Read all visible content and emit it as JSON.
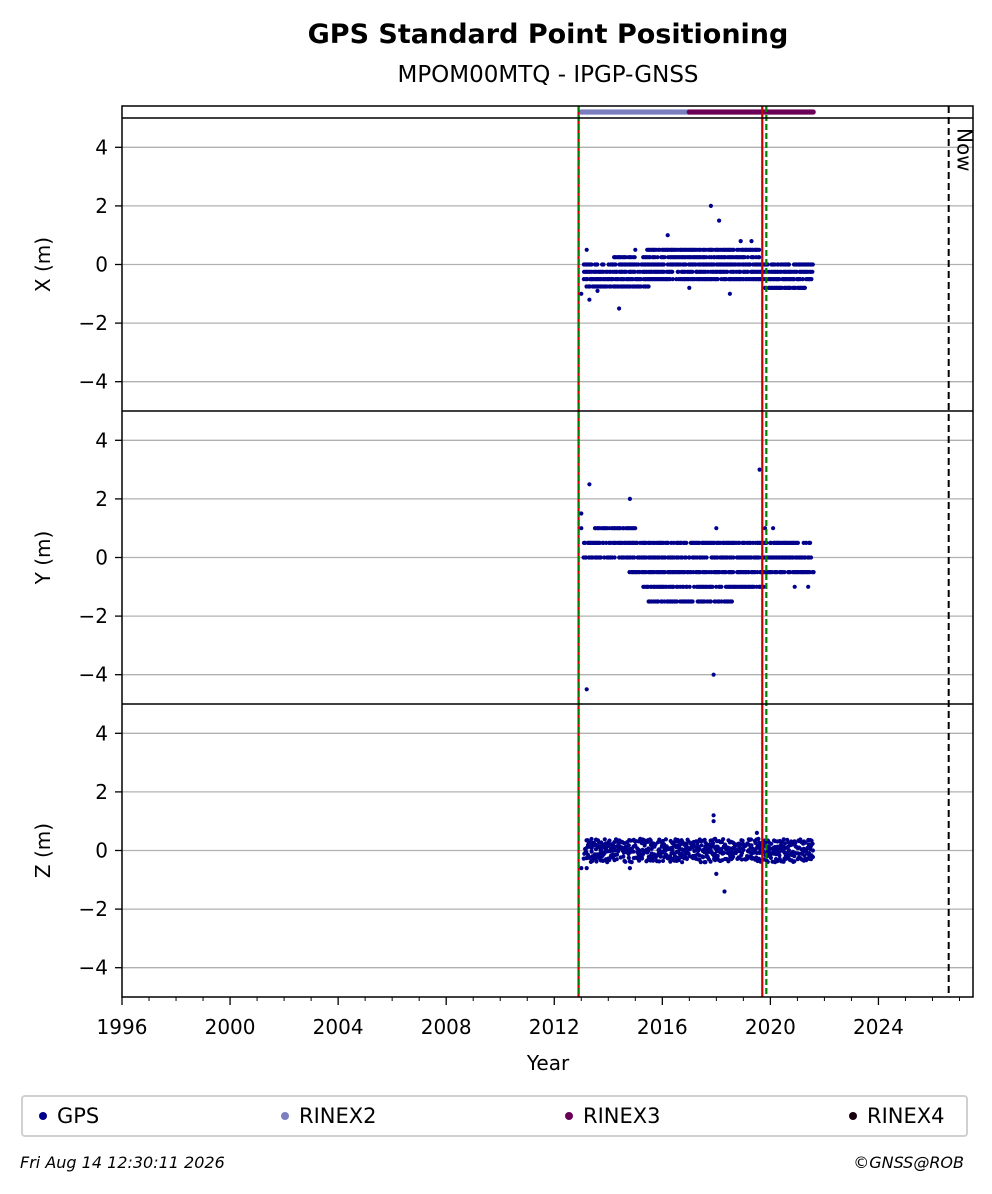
{
  "chart_data": {
    "type": "scatter",
    "title": "GPS Standard Point Positioning",
    "subtitle": "MPOM00MTQ - IPGP-GNSS",
    "xlabel": "Year",
    "xlim": [
      1996,
      2027.5
    ],
    "xticks": [
      "1996",
      "2000",
      "2004",
      "2008",
      "2012",
      "2016",
      "2020",
      "2024"
    ],
    "ylim": [
      -5,
      5
    ],
    "yticks": [
      "4",
      "2",
      "0",
      "−2",
      "−4"
    ],
    "grid": true,
    "now_label": "Now",
    "now_year": 2026.6,
    "vertical_markers": [
      {
        "kind": "equipment",
        "color": "#cc0000",
        "year": 2012.9
      },
      {
        "kind": "dashed-green",
        "color": "#007f00",
        "year": 2012.9
      },
      {
        "kind": "equipment",
        "color": "#cc0000",
        "year": 2019.7
      },
      {
        "kind": "dashed-green",
        "color": "#007f00",
        "year": 2019.85
      }
    ],
    "data_bars": [
      {
        "name": "RINEX2",
        "color": "#7b7fbf",
        "start": 2013.0,
        "end": 2017.0
      },
      {
        "name": "RINEX3",
        "color": "#6b0058",
        "start": 2017.0,
        "end": 2021.6
      }
    ],
    "panels": [
      {
        "ylabel": "X (m)",
        "range": [
          2013.1,
          2021.6
        ],
        "levels": [
          {
            "y": 0.5,
            "from": 2015.4,
            "to": 2019.6
          },
          {
            "y": 0.25,
            "from": 2014.2,
            "to": 2019.7
          },
          {
            "y": 0,
            "from": 2013.1,
            "to": 2021.6
          },
          {
            "y": -0.25,
            "from": 2013.1,
            "to": 2021.6
          },
          {
            "y": -0.5,
            "from": 2013.1,
            "to": 2021.6
          },
          {
            "y": -0.75,
            "from": 2013.1,
            "to": 2015.5
          },
          {
            "y": -0.8,
            "from": 2019.8,
            "to": 2021.3
          }
        ],
        "points": [
          [
            2013.2,
            0.5
          ],
          [
            2013.3,
            -1.2
          ],
          [
            2013.0,
            -1.0
          ],
          [
            2014.4,
            -1.5
          ],
          [
            2017.8,
            2.0
          ],
          [
            2018.1,
            1.5
          ],
          [
            2016.2,
            1.0
          ],
          [
            2017.0,
            -0.8
          ],
          [
            2018.5,
            -1.0
          ],
          [
            2018.9,
            0.8
          ],
          [
            2019.3,
            0.8
          ],
          [
            2013.6,
            -0.9
          ],
          [
            2015.0,
            0.5
          ]
        ]
      },
      {
        "ylabel": "Y (m)",
        "range": [
          2013.1,
          2021.6
        ],
        "levels": [
          {
            "y": 1.0,
            "from": 2013.5,
            "to": 2015.0
          },
          {
            "y": 0.5,
            "from": 2013.1,
            "to": 2021.5
          },
          {
            "y": 0,
            "from": 2013.1,
            "to": 2021.6
          },
          {
            "y": -0.5,
            "from": 2014.8,
            "to": 2021.6
          },
          {
            "y": -1.0,
            "from": 2015.3,
            "to": 2019.8
          },
          {
            "y": -1.5,
            "from": 2015.5,
            "to": 2018.6
          }
        ],
        "points": [
          [
            2013.3,
            2.5
          ],
          [
            2013.2,
            -4.5
          ],
          [
            2013.0,
            1.5
          ],
          [
            2013.0,
            1.0
          ],
          [
            2014.8,
            2.0
          ],
          [
            2017.9,
            -4.0
          ],
          [
            2019.6,
            3.0
          ],
          [
            2018.0,
            1.0
          ],
          [
            2019.8,
            1.0
          ],
          [
            2020.1,
            1.0
          ],
          [
            2020.9,
            -1.0
          ],
          [
            2021.4,
            -1.0
          ]
        ]
      },
      {
        "ylabel": "Z (m)",
        "range": [
          2013.1,
          2021.6
        ],
        "levels": [
          {
            "y": 0.3,
            "from": 2013.2,
            "to": 2021.6
          },
          {
            "y": 0.1,
            "from": 2013.1,
            "to": 2021.6
          },
          {
            "y": -0.1,
            "from": 2013.1,
            "to": 2021.6
          },
          {
            "y": -0.3,
            "from": 2013.1,
            "to": 2021.6
          }
        ],
        "points": [
          [
            2017.9,
            1.2
          ],
          [
            2017.9,
            1.0
          ],
          [
            2018.0,
            -0.8
          ],
          [
            2018.3,
            -1.4
          ],
          [
            2013.2,
            -0.6
          ],
          [
            2013.0,
            -0.6
          ],
          [
            2014.8,
            -0.6
          ],
          [
            2019.5,
            0.6
          ]
        ]
      }
    ]
  },
  "legend": {
    "items": [
      {
        "label": "GPS",
        "color": "#00008b"
      },
      {
        "label": "RINEX2",
        "color": "#7b7fbf"
      },
      {
        "label": "RINEX3",
        "color": "#6b0058"
      },
      {
        "label": "RINEX4",
        "color": "#1a0010"
      }
    ]
  },
  "footer": {
    "timestamp": "Fri Aug 14 12:30:11 2026",
    "credit": "©GNSS@ROB"
  }
}
